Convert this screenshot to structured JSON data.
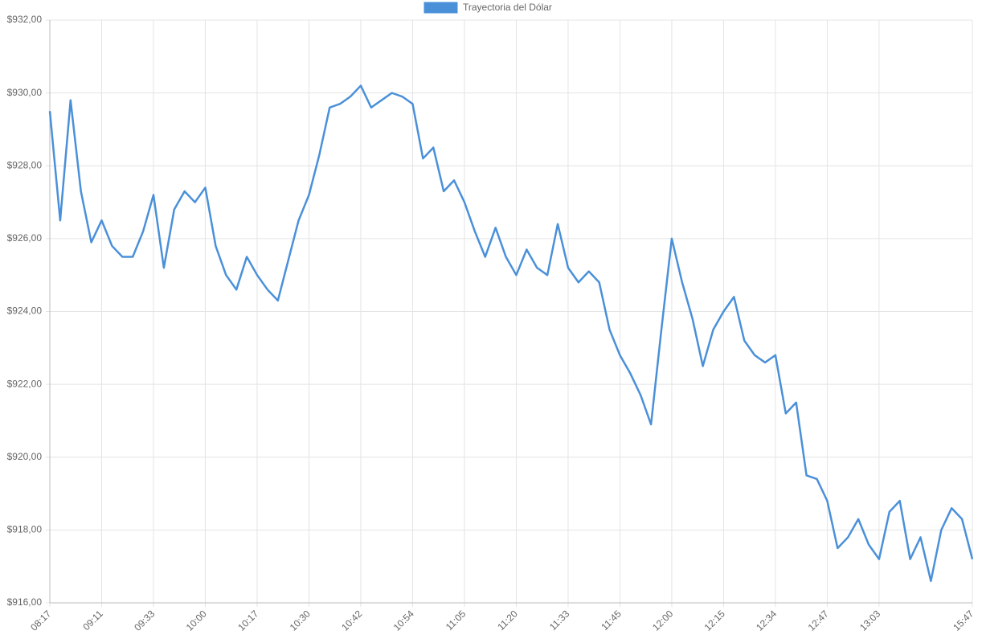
{
  "chart_data": {
    "type": "line",
    "categories": [
      "08:17",
      null,
      null,
      null,
      null,
      "09:11",
      null,
      null,
      null,
      null,
      "09:33",
      null,
      null,
      null,
      null,
      "10:00",
      null,
      null,
      null,
      null,
      "10:17",
      null,
      null,
      null,
      null,
      "10:30",
      null,
      null,
      null,
      null,
      "10:42",
      null,
      null,
      null,
      null,
      "10:54",
      null,
      null,
      null,
      null,
      "11:05",
      null,
      null,
      null,
      null,
      "11:20",
      null,
      null,
      null,
      null,
      "11:33",
      null,
      null,
      null,
      null,
      "11:45",
      null,
      null,
      null,
      null,
      "12:00",
      null,
      null,
      null,
      null,
      "12:15",
      null,
      null,
      null,
      null,
      "12:34",
      null,
      null,
      null,
      null,
      "12:47",
      null,
      null,
      null,
      null,
      "13:03",
      null,
      null,
      null,
      null,
      null,
      null,
      null,
      null,
      "15:47"
    ],
    "series": [
      {
        "name": "Trayectoria del Dólar",
        "color": "#4a90d9",
        "values": [
          929.5,
          926.5,
          929.8,
          927.3,
          925.9,
          926.5,
          925.8,
          925.5,
          925.5,
          926.2,
          927.2,
          925.2,
          926.8,
          927.3,
          927.0,
          927.4,
          925.8,
          925.0,
          924.6,
          925.5,
          925.0,
          924.6,
          924.3,
          925.4,
          926.5,
          927.2,
          928.3,
          929.6,
          929.7,
          929.9,
          930.2,
          929.6,
          929.8,
          930.0,
          929.9,
          929.7,
          928.2,
          928.5,
          927.3,
          927.6,
          927.0,
          926.2,
          925.5,
          926.3,
          925.5,
          925.0,
          925.7,
          925.2,
          925.0,
          926.4,
          925.2,
          924.8,
          925.1,
          924.8,
          923.5,
          922.8,
          922.3,
          921.7,
          920.9,
          923.5,
          926.0,
          924.8,
          923.8,
          922.5,
          923.5,
          924.0,
          924.4,
          923.2,
          922.8,
          922.6,
          922.8,
          921.2,
          921.5,
          919.5,
          919.4,
          918.8,
          917.5,
          917.8,
          918.3,
          917.6,
          917.2,
          918.5,
          918.8,
          917.2,
          917.8,
          916.6,
          918.0,
          918.6,
          918.3,
          917.2
        ]
      }
    ],
    "ylim": [
      916,
      932
    ],
    "yticks": [
      {
        "value": 916,
        "label": "$916,00"
      },
      {
        "value": 918,
        "label": "$918,00"
      },
      {
        "value": 920,
        "label": "$920,00"
      },
      {
        "value": 922,
        "label": "$922,00"
      },
      {
        "value": 924,
        "label": "$924,00"
      },
      {
        "value": 926,
        "label": "$926,00"
      },
      {
        "value": 928,
        "label": "$928,00"
      },
      {
        "value": 930,
        "label": "$930,00"
      },
      {
        "value": 932,
        "label": "$932,00"
      }
    ],
    "grid": true,
    "legend": "top"
  }
}
